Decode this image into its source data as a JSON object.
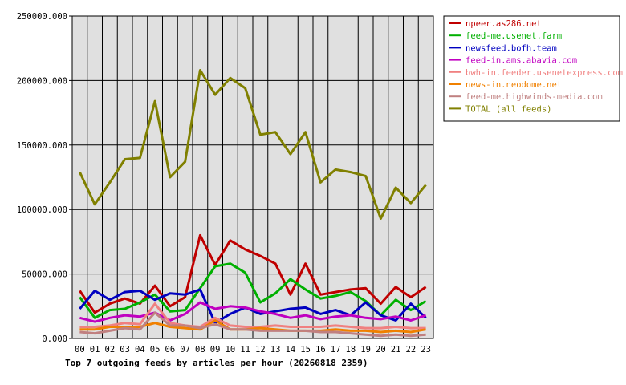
{
  "chart_data": {
    "type": "line",
    "title": "Top 7 outgoing feeds by articles per hour (20260818 2359)",
    "categories": [
      "00",
      "01",
      "02",
      "03",
      "04",
      "05",
      "06",
      "07",
      "08",
      "09",
      "10",
      "11",
      "12",
      "13",
      "14",
      "15",
      "16",
      "17",
      "18",
      "19",
      "20",
      "21",
      "22",
      "23"
    ],
    "y_ticks": [
      "250000.000",
      "200000.000",
      "150000.000",
      "100000.000",
      "50000.000",
      "0.000"
    ],
    "ylim": [
      0,
      250000
    ],
    "grid": true,
    "legend_placement": "right",
    "plot_background": "#e0e0e0",
    "series": [
      {
        "name": "npeer.as286.net",
        "color": "#c00000",
        "values": [
          37000,
          20000,
          27000,
          31000,
          27000,
          41000,
          25000,
          32000,
          80000,
          57000,
          76000,
          69000,
          64000,
          58000,
          34000,
          58000,
          34000,
          36000,
          38000,
          39000,
          27000,
          40000,
          32000,
          40000
        ]
      },
      {
        "name": "feed-me.usenet.farm",
        "color": "#00b000",
        "values": [
          32000,
          16000,
          22000,
          23000,
          28000,
          34000,
          21000,
          22000,
          39000,
          56000,
          58000,
          51000,
          28000,
          35000,
          46000,
          38000,
          31000,
          33000,
          36000,
          29000,
          18000,
          30000,
          22000,
          29000
        ]
      },
      {
        "name": "newsfeed.bofh.team",
        "color": "#0000c0",
        "values": [
          23000,
          37000,
          30000,
          36000,
          37000,
          30000,
          35000,
          34000,
          38000,
          12000,
          19000,
          24000,
          19000,
          21000,
          23000,
          24000,
          19000,
          22000,
          18000,
          28000,
          18000,
          14000,
          27000,
          16000
        ]
      },
      {
        "name": "feed-in.ams.abavia.com",
        "color": "#c000c0",
        "values": [
          16000,
          13000,
          16000,
          18000,
          17000,
          20000,
          14000,
          19000,
          28000,
          23000,
          25000,
          24000,
          21000,
          19000,
          16000,
          18000,
          15000,
          17000,
          18000,
          16000,
          15000,
          17000,
          14000,
          18000
        ]
      },
      {
        "name": "bwh-in.feeder.usenetexpress.com",
        "color": "#f08080",
        "values": [
          9000,
          9000,
          10000,
          12000,
          11000,
          27000,
          12000,
          10000,
          9000,
          16000,
          10000,
          9000,
          9000,
          10000,
          9000,
          9000,
          9000,
          10000,
          9000,
          8000,
          8000,
          9000,
          8000,
          8000
        ]
      },
      {
        "name": "news-in.neodome.net",
        "color": "#f08000",
        "values": [
          7000,
          7000,
          9000,
          9000,
          9000,
          12000,
          9000,
          8000,
          7000,
          14000,
          7000,
          7000,
          8000,
          7000,
          6000,
          6000,
          6000,
          7000,
          6000,
          6000,
          5000,
          6000,
          5000,
          7000
        ]
      },
      {
        "name": "feed-me.highwinds-media.com",
        "color": "#c08080",
        "values": [
          5000,
          4000,
          6000,
          8000,
          7000,
          20000,
          10000,
          10000,
          8000,
          11000,
          7000,
          7000,
          6000,
          6000,
          6000,
          6000,
          5000,
          5000,
          4000,
          3000,
          2000,
          3000,
          2000,
          3000
        ]
      },
      {
        "name": "TOTAL (all feeds)",
        "color": "#808000",
        "values": [
          129000,
          104000,
          121000,
          139000,
          140000,
          184000,
          125000,
          137000,
          208000,
          189000,
          202000,
          194000,
          158000,
          160000,
          143000,
          160000,
          121000,
          131000,
          129000,
          126000,
          93000,
          117000,
          105000,
          119000
        ]
      }
    ]
  }
}
